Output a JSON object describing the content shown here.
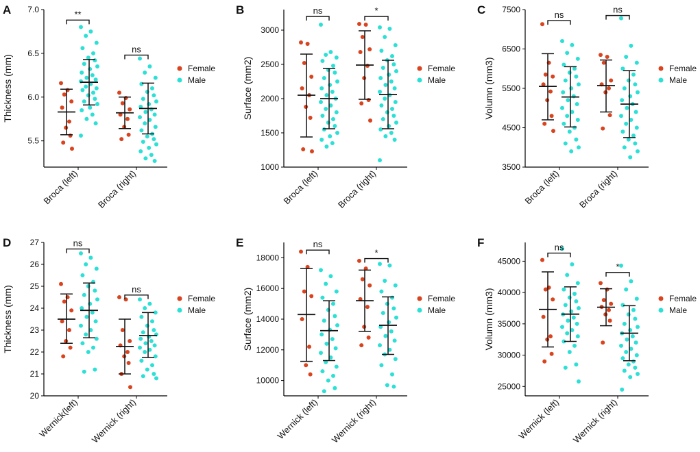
{
  "colors": {
    "female": "#D9431E",
    "male": "#2CE0D6",
    "axis": "#000000",
    "text": "#111111"
  },
  "legend": {
    "female": "Female",
    "male": "Male"
  },
  "chart_data": [
    {
      "label": "A",
      "type": "scatter",
      "title": "",
      "ylabel": "Thickness (mm)",
      "ylim": [
        5.2,
        7.0
      ],
      "yticks": [
        5.5,
        6.0,
        6.5,
        7.0
      ],
      "tick_decimals": 1,
      "categories": [
        "Broca (left)",
        "Broca (right)"
      ],
      "groups": [
        {
          "female": {
            "mean": 5.83,
            "sd_low": 5.57,
            "sd_high": 6.09,
            "points": [
              6.16,
              6.08,
              6.03,
              5.95,
              5.88,
              5.72,
              5.65,
              5.56,
              5.48,
              5.41
            ]
          },
          "male": {
            "mean": 6.17,
            "sd_low": 5.91,
            "sd_high": 6.43,
            "points": [
              6.8,
              6.75,
              6.7,
              6.62,
              6.56,
              6.5,
              6.45,
              6.42,
              6.38,
              6.35,
              6.32,
              6.28,
              6.25,
              6.22,
              6.2,
              6.18,
              6.15,
              6.12,
              6.1,
              6.08,
              6.05,
              6.02,
              5.98,
              5.95,
              5.92,
              5.88,
              5.85,
              5.8,
              5.75,
              5.7,
              5.56
            ]
          }
        },
        {
          "female": {
            "mean": 5.82,
            "sd_low": 5.64,
            "sd_high": 6.0,
            "points": [
              6.05,
              5.99,
              5.93,
              5.86,
              5.8,
              5.75,
              5.66,
              5.57,
              5.52
            ]
          },
          "male": {
            "mean": 5.87,
            "sd_low": 5.58,
            "sd_high": 6.16,
            "points": [
              6.44,
              6.35,
              6.28,
              6.22,
              6.15,
              6.1,
              6.06,
              6.02,
              5.98,
              5.95,
              5.92,
              5.89,
              5.86,
              5.83,
              5.8,
              5.77,
              5.74,
              5.7,
              5.66,
              5.62,
              5.58,
              5.55,
              5.52,
              5.49,
              5.46,
              5.42,
              5.38,
              5.34,
              5.3,
              5.27
            ]
          }
        }
      ],
      "significance": [
        {
          "text": "**",
          "at": 6.88
        },
        {
          "text": "ns",
          "at": 6.48
        }
      ]
    },
    {
      "label": "B",
      "type": "scatter",
      "title": "",
      "ylabel": "Surface (mm2)",
      "ylim": [
        1000,
        3300
      ],
      "yticks": [
        1000,
        1500,
        2000,
        2500,
        3000
      ],
      "tick_decimals": 0,
      "categories": [
        "Broca (left)",
        "Broca (right)"
      ],
      "groups": [
        {
          "female": {
            "mean": 2050,
            "sd_low": 1440,
            "sd_high": 2650,
            "points": [
              2820,
              2800,
              2520,
              2320,
              2150,
              2050,
              1880,
              1720,
              1260,
              1230
            ]
          },
          "male": {
            "mean": 2000,
            "sd_low": 1560,
            "sd_high": 2440,
            "points": [
              3080,
              2680,
              2640,
              2600,
              2550,
              2480,
              2420,
              2380,
              2300,
              2250,
              2200,
              2150,
              2100,
              2050,
              2000,
              1950,
              1900,
              1850,
              1800,
              1750,
              1700,
              1650,
              1600,
              1550,
              1500,
              1450,
              1400,
              1350,
              1300
            ]
          }
        },
        {
          "female": {
            "mean": 2490,
            "sd_low": 1990,
            "sd_high": 2990,
            "points": [
              3090,
              3080,
              2900,
              2720,
              2680,
              2480,
              2300,
              1980,
              1930,
              1680
            ]
          },
          "male": {
            "mean": 2060,
            "sd_low": 1560,
            "sd_high": 2560,
            "points": [
              3040,
              3020,
              2900,
              2780,
              2700,
              2620,
              2560,
              2500,
              2450,
              2400,
              2350,
              2300,
              2250,
              2200,
              2150,
              2100,
              2050,
              2000,
              1950,
              1900,
              1850,
              1800,
              1750,
              1700,
              1650,
              1600,
              1550,
              1500,
              1450,
              1400,
              1100
            ]
          }
        }
      ],
      "significance": [
        {
          "text": "ns",
          "at": 3200
        },
        {
          "text": "*",
          "at": 3200
        }
      ]
    },
    {
      "label": "C",
      "type": "scatter",
      "title": "",
      "ylabel": "Volumn (mm3)",
      "ylim": [
        3500,
        7500
      ],
      "yticks": [
        3500,
        4500,
        5500,
        6500,
        7500
      ],
      "tick_decimals": 0,
      "categories": [
        "Broca (left)",
        "Broca (right)"
      ],
      "groups": [
        {
          "female": {
            "mean": 5550,
            "sd_low": 4700,
            "sd_high": 6380,
            "points": [
              7130,
              6150,
              5850,
              5800,
              5600,
              5420,
              5200,
              4800,
              4600,
              4420
            ]
          },
          "male": {
            "mean": 5280,
            "sd_low": 4520,
            "sd_high": 6050,
            "points": [
              6700,
              6600,
              6400,
              6250,
              6100,
              6000,
              5900,
              5800,
              5700,
              5600,
              5500,
              5400,
              5300,
              5200,
              5100,
              5000,
              4900,
              4800,
              4700,
              4600,
              4500,
              4400,
              4200,
              4100,
              4000,
              3900
            ]
          }
        },
        {
          "female": {
            "mean": 5570,
            "sd_low": 4900,
            "sd_high": 6220,
            "points": [
              6350,
              6300,
              6150,
              5700,
              5600,
              5500,
              5400,
              4820,
              4480
            ]
          },
          "male": {
            "mean": 5100,
            "sd_low": 4250,
            "sd_high": 5950,
            "points": [
              7280,
              6580,
              6300,
              6150,
              6000,
              5850,
              5700,
              5600,
              5500,
              5400,
              5300,
              5200,
              5100,
              5000,
              4900,
              4800,
              4700,
              4600,
              4500,
              4400,
              4300,
              4200,
              4100,
              4000,
              3900,
              3750
            ]
          }
        }
      ],
      "significance": [
        {
          "text": "ns",
          "at": 7220
        },
        {
          "text": "ns",
          "at": 7350
        }
      ]
    },
    {
      "label": "D",
      "type": "scatter",
      "title": "",
      "ylabel": "Thickness (mm)",
      "ylim": [
        20,
        27
      ],
      "yticks": [
        20,
        21,
        22,
        23,
        24,
        25,
        26,
        27
      ],
      "tick_decimals": 0,
      "categories": [
        "Wernick(left)",
        "Wernick (right)"
      ],
      "groups": [
        {
          "female": {
            "mean": 23.5,
            "sd_low": 22.4,
            "sd_high": 24.65,
            "points": [
              25.1,
              24.5,
              24.3,
              23.9,
              23.4,
              23.0,
              22.5,
              22.2,
              21.8
            ]
          },
          "male": {
            "mean": 23.9,
            "sd_low": 22.65,
            "sd_high": 25.15,
            "points": [
              26.5,
              26.3,
              26.0,
              25.8,
              25.5,
              25.2,
              25.0,
              24.8,
              24.6,
              24.4,
              24.2,
              24.0,
              23.8,
              23.6,
              23.4,
              23.2,
              23.0,
              22.8,
              22.6,
              22.4,
              22.2,
              22.0,
              21.2,
              21.1
            ]
          }
        },
        {
          "female": {
            "mean": 22.25,
            "sd_low": 21.0,
            "sd_high": 23.5,
            "points": [
              24.5,
              24.4,
              23.0,
              22.5,
              22.3,
              22.0,
              21.8,
              21.5,
              21.0,
              20.4
            ]
          },
          "male": {
            "mean": 22.75,
            "sd_low": 21.75,
            "sd_high": 23.8,
            "points": [
              24.4,
              24.2,
              24.0,
              23.8,
              23.6,
              23.4,
              23.2,
              23.0,
              22.9,
              22.8,
              22.7,
              22.6,
              22.5,
              22.4,
              22.3,
              22.2,
              22.1,
              22.0,
              21.8,
              21.6,
              21.4,
              21.2,
              21.0,
              20.9,
              20.8
            ]
          }
        }
      ],
      "significance": [
        {
          "text": "ns",
          "at": 26.7
        },
        {
          "text": "ns",
          "at": 24.6
        }
      ]
    },
    {
      "label": "E",
      "type": "scatter",
      "title": "",
      "ylabel": "Surface (mm2)",
      "ylim": [
        9000,
        19000
      ],
      "yticks": [
        10000,
        12000,
        14000,
        16000,
        18000
      ],
      "tick_decimals": 0,
      "categories": [
        "Wernick (left)",
        "Wernick (right)"
      ],
      "groups": [
        {
          "female": {
            "mean": 14300,
            "sd_low": 11250,
            "sd_high": 17300,
            "points": [
              18400,
              17400,
              15800,
              15500,
              14000,
              12200,
              11000,
              10400
            ]
          },
          "male": {
            "mean": 13250,
            "sd_low": 11300,
            "sd_high": 15200,
            "points": [
              17200,
              16800,
              16300,
              15800,
              15400,
              15000,
              14600,
              14200,
              13900,
              13600,
              13300,
              13000,
              12700,
              12400,
              12100,
              11800,
              11500,
              11200,
              10900,
              10600,
              10300,
              10000,
              9500,
              9300
            ]
          }
        },
        {
          "female": {
            "mean": 15200,
            "sd_low": 13200,
            "sd_high": 17200,
            "points": [
              17800,
              17300,
              16600,
              16200,
              15300,
              14800,
              13500,
              12800,
              12300
            ]
          },
          "male": {
            "mean": 13600,
            "sd_low": 11700,
            "sd_high": 15450,
            "points": [
              17600,
              17500,
              16500,
              16200,
              15800,
              15400,
              15000,
              14700,
              14400,
              14100,
              13800,
              13500,
              13200,
              12900,
              12600,
              12300,
              12000,
              11700,
              11400,
              11000,
              10400,
              9700,
              9600
            ]
          }
        }
      ],
      "significance": [
        {
          "text": "ns",
          "at": 18500
        },
        {
          "text": "*",
          "at": 17950
        }
      ]
    },
    {
      "label": "F",
      "type": "scatter",
      "title": "",
      "ylabel": "Volumn (mm3)",
      "ylim": [
        23500,
        48000
      ],
      "yticks": [
        25000,
        30000,
        35000,
        40000,
        45000
      ],
      "tick_decimals": 0,
      "categories": [
        "Wernick (left)",
        "Wernick (right)"
      ],
      "groups": [
        {
          "female": {
            "mean": 37300,
            "sd_low": 31300,
            "sd_high": 43300,
            "points": [
              45200,
              40800,
              40500,
              38900,
              36100,
              33000,
              32500,
              30200,
              29000
            ]
          },
          "male": {
            "mean": 36550,
            "sd_low": 32200,
            "sd_high": 40900,
            "points": [
              47000,
              44500,
              42800,
              41500,
              40500,
              39800,
              39200,
              38600,
              38000,
              37500,
              37000,
              36500,
              36000,
              35500,
              35000,
              34500,
              34000,
              33500,
              33000,
              32200,
              31500,
              30500,
              28500,
              28000,
              25800
            ]
          }
        },
        {
          "female": {
            "mean": 37650,
            "sd_low": 34700,
            "sd_high": 40600,
            "points": [
              41500,
              40500,
              38800,
              38200,
              37700,
              37200,
              36500,
              35500,
              32000
            ]
          },
          "male": {
            "mean": 33500,
            "sd_low": 29100,
            "sd_high": 37900,
            "points": [
              44300,
              41800,
              40500,
              39000,
              38000,
              37200,
              36500,
              35800,
              35000,
              34500,
              34000,
              33500,
              33000,
              32500,
              32000,
              31500,
              31000,
              30500,
              30000,
              29500,
              29000,
              28500,
              28000,
              27500,
              27000,
              26500,
              24500
            ]
          }
        }
      ],
      "significance": [
        {
          "text": "ns",
          "at": 46300
        },
        {
          "text": "*",
          "at": 43200
        }
      ]
    }
  ]
}
